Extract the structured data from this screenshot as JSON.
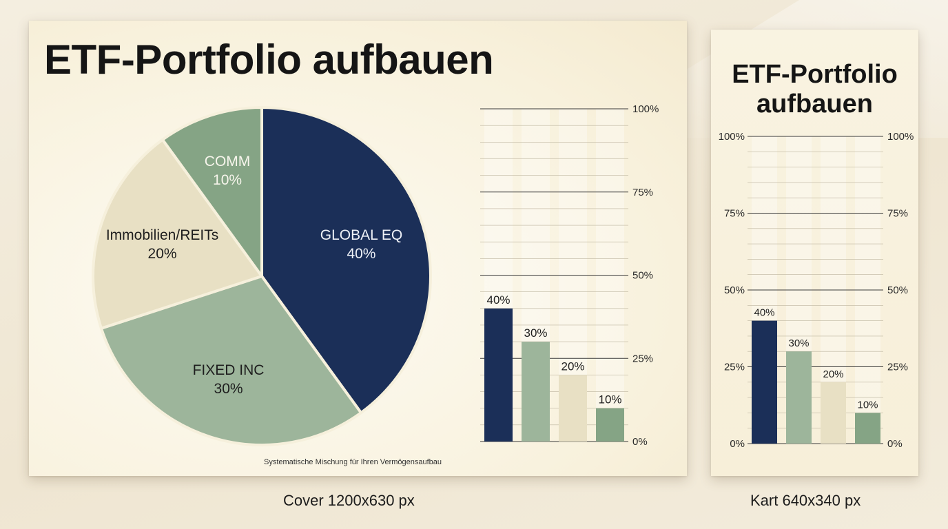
{
  "cover": {
    "title": "ETF-Portfolio aufbauen",
    "footnote": "Systematische Mischung für Ihren Vermögensaufbau",
    "caption": "Cover 1200x630 px"
  },
  "kart": {
    "title": "ETF-Portfolio aufbauen",
    "caption": "Kart 640x340 px"
  },
  "colors": {
    "navy": "#1b2f58",
    "sage": "#9db59b",
    "beige": "#e8e0c4",
    "green": "#85a485"
  },
  "chart_data": [
    {
      "type": "pie",
      "slices": [
        {
          "label": "GLOBAL EQ",
          "value": 40,
          "value_label": "40%",
          "color": "#1b2f58"
        },
        {
          "label": "FIXED INC",
          "value": 30,
          "value_label": "30%",
          "color": "#9db59b"
        },
        {
          "label": "Immobilien/REITs",
          "value": 20,
          "value_label": "20%",
          "color": "#e8e0c4"
        },
        {
          "label": "COMM",
          "value": 10,
          "value_label": "10%",
          "color": "#85a485"
        }
      ]
    },
    {
      "type": "bar",
      "values": [
        40,
        30,
        20,
        10
      ],
      "value_labels": [
        "40%",
        "30%",
        "20%",
        "10%"
      ],
      "colors": [
        "#1b2f58",
        "#9db59b",
        "#e8e0c4",
        "#85a485"
      ],
      "ylim": [
        0,
        100
      ],
      "yticks": [
        0,
        25,
        50,
        75,
        100
      ],
      "ytick_labels": [
        "0%",
        "25%",
        "50%",
        "75%",
        "100%"
      ],
      "axis": "right",
      "grid": true
    },
    {
      "type": "bar",
      "values": [
        40,
        30,
        20,
        10
      ],
      "value_labels": [
        "40%",
        "30%",
        "20%",
        "10%"
      ],
      "colors": [
        "#1b2f58",
        "#9db59b",
        "#e8e0c4",
        "#85a485"
      ],
      "ylim": [
        0,
        100
      ],
      "yticks": [
        0,
        25,
        50,
        75,
        100
      ],
      "ytick_labels": [
        "0%",
        "25%",
        "50%",
        "75%",
        "100%"
      ],
      "axis": "both",
      "grid": true
    }
  ]
}
